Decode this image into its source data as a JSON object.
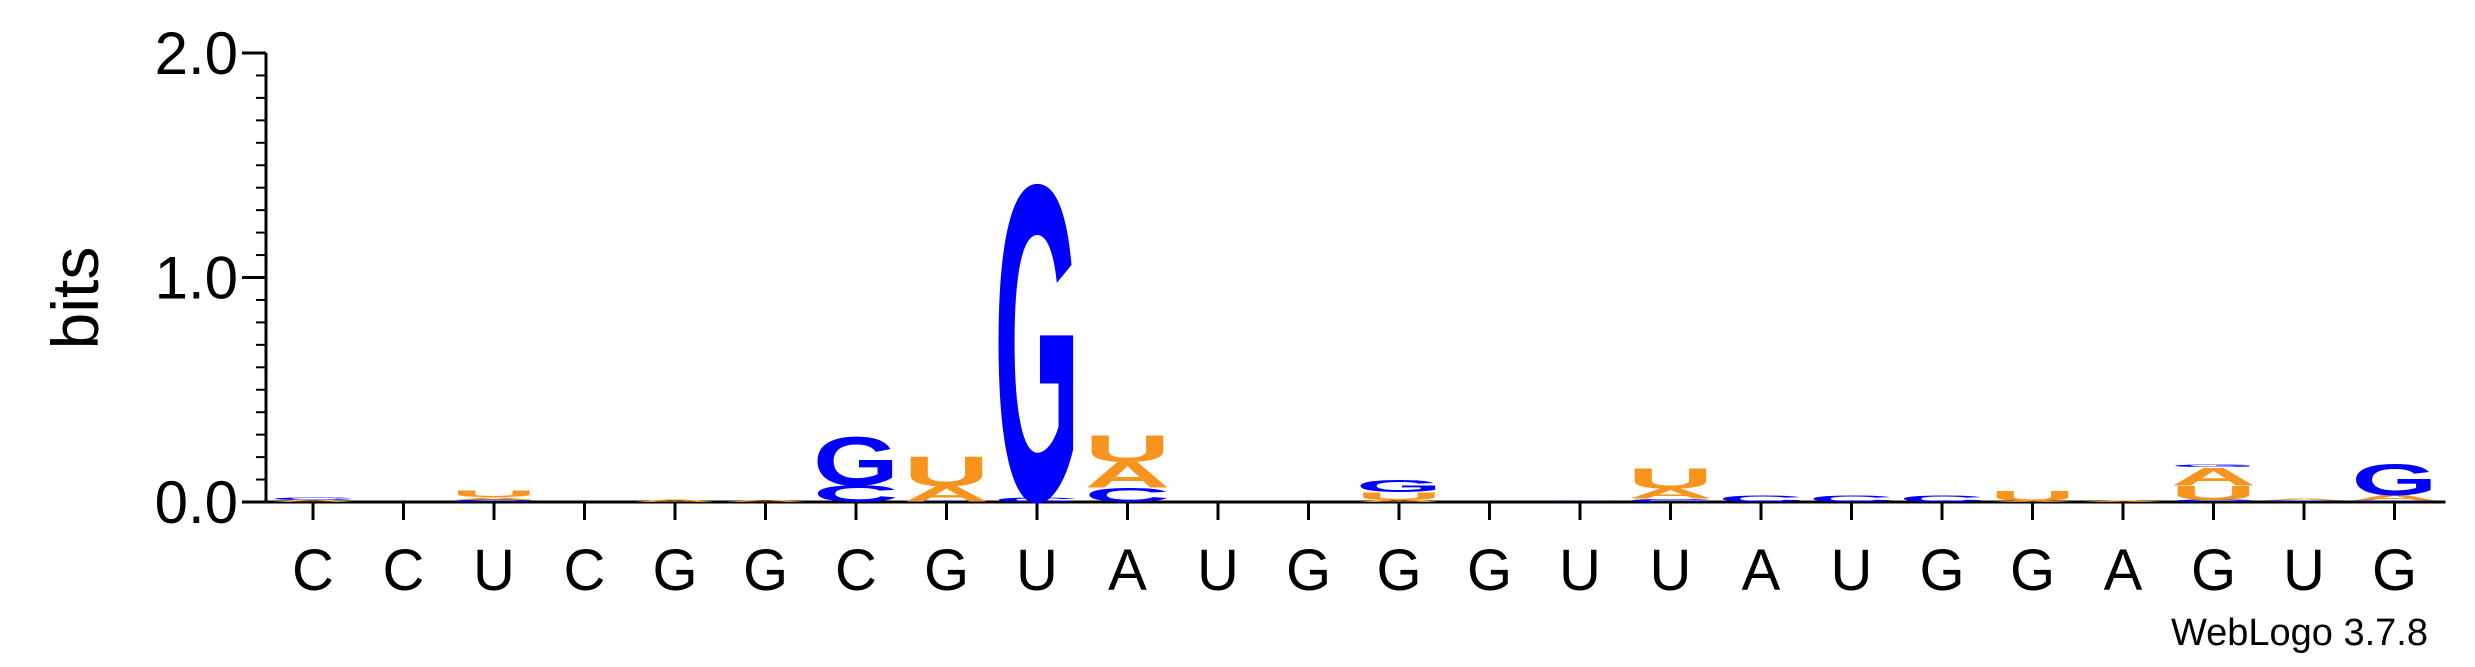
{
  "colors": {
    "A": "#f7941d",
    "U": "#f7941d",
    "G": "#0000ff",
    "C": "#0000ff",
    "axis": "#000000"
  },
  "chart_data": {
    "type": "sequence-logo",
    "ylabel": "bits",
    "ylim": [
      0,
      2.0
    ],
    "yticks": [
      "0.0",
      "1.0",
      "2.0"
    ],
    "positions": [
      "C",
      "C",
      "U",
      "C",
      "G",
      "G",
      "C",
      "G",
      "U",
      "A",
      "U",
      "G",
      "G",
      "G",
      "U",
      "U",
      "A",
      "U",
      "G",
      "G",
      "A",
      "G",
      "U",
      "G"
    ],
    "stacks": [
      [
        {
          "l": "A",
          "h": 0.008
        },
        {
          "l": "C",
          "h": 0.012
        }
      ],
      [],
      [
        {
          "l": "C",
          "h": 0.01
        },
        {
          "l": "A",
          "h": 0.012
        },
        {
          "l": "U",
          "h": 0.028
        }
      ],
      [],
      [
        {
          "l": "A",
          "h": 0.012
        }
      ],
      [
        {
          "l": "A",
          "h": 0.008
        }
      ],
      [
        {
          "l": "C",
          "h": 0.075
        },
        {
          "l": "G",
          "h": 0.22
        }
      ],
      [
        {
          "l": "C",
          "h": 0.003
        },
        {
          "l": "A",
          "h": 0.07
        },
        {
          "l": "U",
          "h": 0.135
        }
      ],
      [
        {
          "l": "C",
          "h": 0.02
        },
        {
          "l": "G",
          "h": 1.42
        }
      ],
      [
        {
          "l": "C",
          "h": 0.065
        },
        {
          "l": "A",
          "h": 0.115
        },
        {
          "l": "U",
          "h": 0.12
        }
      ],
      [],
      [],
      [
        {
          "l": "A",
          "h": 0.01
        },
        {
          "l": "U",
          "h": 0.035
        },
        {
          "l": "G",
          "h": 0.055
        }
      ],
      [],
      [
        {
          "l": "C",
          "h": 0.003
        }
      ],
      [
        {
          "l": "C",
          "h": 0.015
        },
        {
          "l": "A",
          "h": 0.045
        },
        {
          "l": "U",
          "h": 0.09
        }
      ],
      [
        {
          "l": "C",
          "h": 0.03
        }
      ],
      [
        {
          "l": "C",
          "h": 0.03
        }
      ],
      [
        {
          "l": "C",
          "h": 0.03
        }
      ],
      [
        {
          "l": "A",
          "h": 0.005
        },
        {
          "l": "U",
          "h": 0.045
        }
      ],
      [
        {
          "l": "A",
          "h": 0.006
        }
      ],
      [
        {
          "l": "C",
          "h": 0.01
        },
        {
          "l": "U",
          "h": 0.065
        },
        {
          "l": "A",
          "h": 0.08
        },
        {
          "l": "G",
          "h": 0.01
        }
      ],
      [
        {
          "l": "C",
          "h": 0.006
        },
        {
          "l": "A",
          "h": 0.008
        }
      ],
      [
        {
          "l": "C",
          "h": 0.006
        },
        {
          "l": "A",
          "h": 0.025
        },
        {
          "l": "G",
          "h": 0.14
        }
      ]
    ],
    "credit": "WebLogo 3.7.8"
  }
}
